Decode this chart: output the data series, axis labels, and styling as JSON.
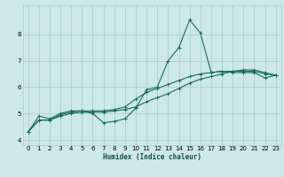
{
  "xlabel": "Humidex (Indice chaleur)",
  "bg_color": "#cce8e8",
  "grid_color": "#aacccc",
  "line_color": "#1a6b5a",
  "xlim": [
    -0.5,
    23.5
  ],
  "ylim": [
    3.8,
    9.1
  ],
  "yticks": [
    4,
    5,
    6,
    7,
    8
  ],
  "xticks": [
    0,
    1,
    2,
    3,
    4,
    5,
    6,
    7,
    8,
    9,
    10,
    11,
    12,
    13,
    14,
    15,
    16,
    17,
    18,
    19,
    20,
    21,
    22,
    23
  ],
  "line1_x": [
    0,
    1,
    2,
    3,
    4,
    5,
    6,
    7,
    8,
    9,
    10,
    11,
    12,
    13,
    14,
    15,
    16,
    17,
    18,
    19,
    20,
    21,
    22,
    23
  ],
  "line1_y": [
    4.3,
    4.9,
    4.8,
    5.0,
    5.1,
    5.1,
    5.0,
    4.65,
    4.7,
    4.8,
    5.2,
    5.9,
    6.0,
    7.0,
    7.5,
    8.55,
    8.05,
    6.55,
    6.6,
    6.55,
    6.55,
    6.55,
    6.35,
    6.45
  ],
  "line2_x": [
    0,
    1,
    2,
    3,
    4,
    5,
    6,
    7,
    8,
    9,
    10,
    11,
    12,
    13,
    14,
    15,
    16,
    17,
    18,
    19,
    20,
    21,
    22,
    23
  ],
  "line2_y": [
    4.3,
    4.75,
    4.75,
    4.9,
    5.0,
    5.05,
    5.05,
    5.05,
    5.1,
    5.15,
    5.25,
    5.45,
    5.6,
    5.75,
    5.95,
    6.15,
    6.3,
    6.4,
    6.5,
    6.6,
    6.65,
    6.65,
    6.55,
    6.45
  ],
  "line3_x": [
    0,
    1,
    2,
    3,
    4,
    5,
    6,
    7,
    8,
    9,
    10,
    11,
    12,
    13,
    14,
    15,
    16,
    17,
    18,
    19,
    20,
    21,
    22,
    23
  ],
  "line3_y": [
    4.3,
    4.75,
    4.75,
    4.95,
    5.05,
    5.1,
    5.1,
    5.1,
    5.15,
    5.25,
    5.55,
    5.8,
    5.95,
    6.1,
    6.25,
    6.4,
    6.5,
    6.55,
    6.6,
    6.6,
    6.6,
    6.6,
    6.5,
    6.45
  ],
  "marker_style": "+",
  "marker_size": 3,
  "linewidth": 0.8,
  "tick_fontsize": 5.0,
  "xlabel_fontsize": 5.5
}
